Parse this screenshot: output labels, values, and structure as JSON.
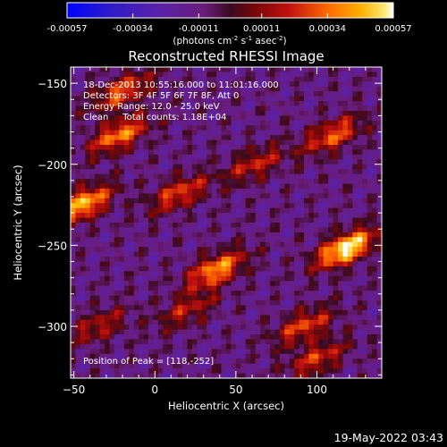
{
  "chart_data": {
    "type": "heatmap",
    "title": "Reconstructed RHESSI Image",
    "xlabel": "Heliocentric X (arcsec)",
    "ylabel": "Heliocentric Y (arcsec)",
    "xlim": [
      -52,
      140
    ],
    "ylim": [
      -332,
      -140
    ],
    "x_ticks": [
      -50,
      0,
      50,
      100
    ],
    "y_ticks": [
      -150,
      -200,
      -250,
      -300
    ],
    "colorbar": {
      "ticks": [
        "-0.00057",
        "-0.00034",
        "-0.00011",
        "0.00011",
        "0.00034",
        "0.00057"
      ],
      "range": [
        -0.00057,
        0.00057
      ],
      "units_prefix": "(photons cm",
      "units_exp1": "-2",
      "units_mid": " s",
      "units_exp2": "-1",
      "units_mid2": " asec",
      "units_exp3": "-2",
      "units_suffix": ")"
    },
    "annotations": [
      "18-Dec-2013 10:55:16.000 to 11:01:16.000",
      "Detectors: 3F 4F 5F 6F 7F 8F, Att 0",
      "Energy Range: 12.0 - 25.0 keV",
      "Clean     Total counts: 1.18E+04"
    ],
    "peak_label": "Position of Peak = [118,-252]",
    "peak": [
      118,
      -252
    ],
    "bright_sources": [
      {
        "x": 118,
        "y": -252,
        "intensity": 1.0
      },
      {
        "x": -45,
        "y": -225,
        "intensity": 0.85
      },
      {
        "x": 38,
        "y": -265,
        "intensity": 0.75
      },
      {
        "x": -22,
        "y": -182,
        "intensity": 0.7
      },
      {
        "x": 110,
        "y": -182,
        "intensity": 0.6
      },
      {
        "x": 92,
        "y": -300,
        "intensity": 0.55
      },
      {
        "x": 15,
        "y": -218,
        "intensity": 0.55
      },
      {
        "x": -20,
        "y": -155,
        "intensity": 0.6
      },
      {
        "x": 100,
        "y": -320,
        "intensity": 0.5
      },
      {
        "x": 62,
        "y": -200,
        "intensity": 0.45
      },
      {
        "x": -35,
        "y": -300,
        "intensity": 0.4
      },
      {
        "x": 20,
        "y": -290,
        "intensity": 0.4
      }
    ]
  },
  "timestamp": "19-May-2022 03:43",
  "colors": {
    "background": "#000000",
    "foreground": "#ffffff"
  }
}
